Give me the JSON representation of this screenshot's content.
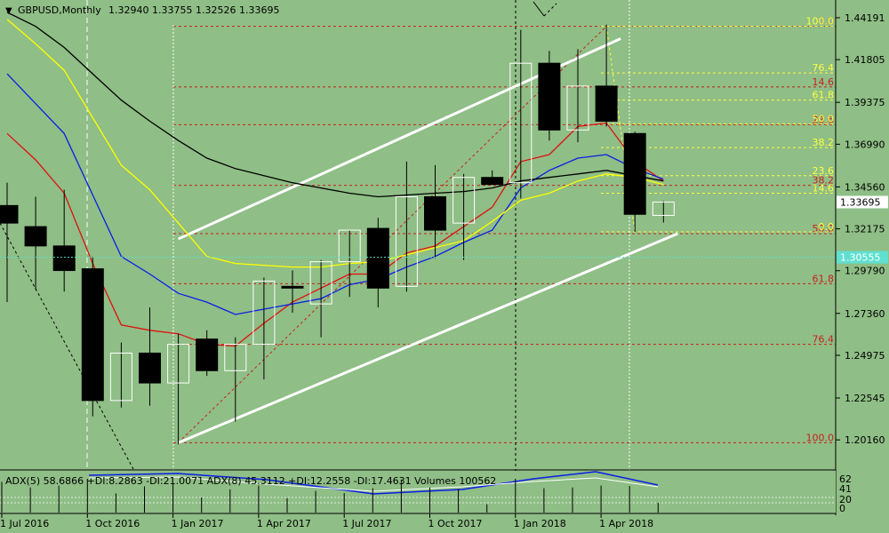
{
  "header": {
    "symbol_tf": "GBPUSD,Monthly",
    "ohlc": "1.32940 1.33755 1.32526 1.33695"
  },
  "indicator": {
    "label": "ADX(5) 58.6866 +DI:8.2863 -DI:21.0071  ADX(8) 45.3112 +DI:12.2558 -DI:17.4631  Volumes 100562",
    "levels": [
      "62",
      "41",
      "20",
      "0"
    ]
  },
  "colors": {
    "background": "#8fbe86",
    "grid_red": "#c8201e",
    "fib_yellow": "#ffff40",
    "bull": "#ffffff",
    "bear": "#000000",
    "channel": "#ffffff",
    "ma_red": "#e01010",
    "ma_blue": "#0a1ee6",
    "ma_yellow": "#ffff00",
    "ma_black": "#000000",
    "cyan_line": "#5fe0d0",
    "current_price_bg": "#ffffff"
  },
  "chart_data": {
    "type": "candlestick",
    "symbol": "GBPUSD",
    "timeframe": "Monthly",
    "ylim": [
      1.185,
      1.452
    ],
    "x_labels": [
      "1 Jul 2016",
      "1 Oct 2016",
      "1 Jan 2017",
      "1 Apr 2017",
      "1 Jul 2017",
      "1 Oct 2017",
      "1 Jan 2018",
      "1 Apr 2018"
    ],
    "x_label_index": [
      0,
      3,
      6,
      9,
      12,
      15,
      18,
      21
    ],
    "y_ticks": [
      "1.44191",
      "1.41805",
      "1.39375",
      "1.36990",
      "1.34560",
      "1.32175",
      "1.29790",
      "1.27360",
      "1.24975",
      "1.22545",
      "1.20160"
    ],
    "current_price": "1.33695",
    "cyan_price": "1.30555",
    "candles": [
      {
        "o": 1.335,
        "h": 1.348,
        "l": 1.28,
        "c": 1.325
      },
      {
        "o": 1.323,
        "h": 1.34,
        "l": 1.287,
        "c": 1.312
      },
      {
        "o": 1.312,
        "h": 1.344,
        "l": 1.286,
        "c": 1.298
      },
      {
        "o": 1.299,
        "h": 1.306,
        "l": 1.215,
        "c": 1.224
      },
      {
        "o": 1.224,
        "h": 1.257,
        "l": 1.22,
        "c": 1.251
      },
      {
        "o": 1.251,
        "h": 1.277,
        "l": 1.221,
        "c": 1.234
      },
      {
        "o": 1.234,
        "h": 1.262,
        "l": 1.199,
        "c": 1.256
      },
      {
        "o": 1.259,
        "h": 1.264,
        "l": 1.238,
        "c": 1.241
      },
      {
        "o": 1.241,
        "h": 1.26,
        "l": 1.212,
        "c": 1.256
      },
      {
        "o": 1.256,
        "h": 1.294,
        "l": 1.236,
        "c": 1.292
      },
      {
        "o": 1.289,
        "h": 1.298,
        "l": 1.274,
        "c": 1.288
      },
      {
        "o": 1.279,
        "h": 1.304,
        "l": 1.26,
        "c": 1.303
      },
      {
        "o": 1.303,
        "h": 1.321,
        "l": 1.283,
        "c": 1.321
      },
      {
        "o": 1.322,
        "h": 1.328,
        "l": 1.277,
        "c": 1.288
      },
      {
        "o": 1.289,
        "h": 1.36,
        "l": 1.286,
        "c": 1.34
      },
      {
        "o": 1.34,
        "h": 1.358,
        "l": 1.305,
        "c": 1.321
      },
      {
        "o": 1.325,
        "h": 1.353,
        "l": 1.304,
        "c": 1.351
      },
      {
        "o": 1.351,
        "h": 1.355,
        "l": 1.347,
        "c": 1.347
      },
      {
        "o": 1.348,
        "h": 1.435,
        "l": 1.339,
        "c": 1.416
      },
      {
        "o": 1.416,
        "h": 1.423,
        "l": 1.372,
        "c": 1.378
      },
      {
        "o": 1.378,
        "h": 1.424,
        "l": 1.371,
        "c": 1.403
      },
      {
        "o": 1.403,
        "h": 1.438,
        "l": 1.38,
        "c": 1.383
      },
      {
        "o": 1.376,
        "h": 1.377,
        "l": 1.32,
        "c": 1.33
      },
      {
        "o": 1.3294,
        "h": 1.3376,
        "l": 1.3253,
        "c": 1.337
      }
    ],
    "fib_red": {
      "levels": [
        {
          "label": "100.0",
          "price": 1.2
        },
        {
          "label": "76.4",
          "price": 1.256
        },
        {
          "label": "61.8",
          "price": 1.2905
        },
        {
          "label": "50.0",
          "price": 1.319
        },
        {
          "label": "38.2",
          "price": 1.3465
        },
        {
          "label": "23.6",
          "price": 1.381
        },
        {
          "label": "14.6",
          "price": 1.4025
        },
        {
          "label": "0.0",
          "price": 1.437
        }
      ]
    },
    "fib_yellow": {
      "levels": [
        {
          "label": "100.0",
          "price": 1.437
        },
        {
          "label": "76.4",
          "price": 1.4105
        },
        {
          "label": "61.8",
          "price": 1.395
        },
        {
          "label": "50.0",
          "price": 1.3815
        },
        {
          "label": "38.2",
          "price": 1.368
        },
        {
          "label": "23.6",
          "price": 1.352
        },
        {
          "label": "14.6",
          "price": 1.342
        },
        {
          "label": "0.0",
          "price": 1.32
        }
      ]
    },
    "moving_averages": [
      {
        "color": "#e01010",
        "points": [
          [
            0,
            1.376
          ],
          [
            1,
            1.361
          ],
          [
            2,
            1.342
          ],
          [
            3,
            1.302
          ],
          [
            4,
            1.267
          ],
          [
            5,
            1.264
          ],
          [
            6,
            1.262
          ],
          [
            7,
            1.256
          ],
          [
            8,
            1.255
          ],
          [
            9,
            1.268
          ],
          [
            10,
            1.28
          ],
          [
            11,
            1.288
          ],
          [
            12,
            1.296
          ],
          [
            13,
            1.296
          ],
          [
            14,
            1.308
          ],
          [
            15,
            1.312
          ],
          [
            16,
            1.323
          ],
          [
            17,
            1.334
          ],
          [
            18,
            1.36
          ],
          [
            19,
            1.364
          ],
          [
            20,
            1.38
          ],
          [
            21,
            1.382
          ],
          [
            22,
            1.36
          ],
          [
            23,
            1.349
          ]
        ]
      },
      {
        "color": "#0a1ee6",
        "points": [
          [
            0,
            1.41
          ],
          [
            1,
            1.393
          ],
          [
            2,
            1.376
          ],
          [
            3,
            1.341
          ],
          [
            4,
            1.306
          ],
          [
            5,
            1.296
          ],
          [
            6,
            1.285
          ],
          [
            7,
            1.28
          ],
          [
            8,
            1.273
          ],
          [
            9,
            1.276
          ],
          [
            10,
            1.279
          ],
          [
            11,
            1.282
          ],
          [
            12,
            1.29
          ],
          [
            13,
            1.293
          ],
          [
            14,
            1.3
          ],
          [
            15,
            1.306
          ],
          [
            16,
            1.314
          ],
          [
            17,
            1.321
          ],
          [
            18,
            1.345
          ],
          [
            19,
            1.355
          ],
          [
            20,
            1.362
          ],
          [
            21,
            1.364
          ],
          [
            22,
            1.356
          ],
          [
            23,
            1.35
          ]
        ]
      },
      {
        "color": "#ffff00",
        "points": [
          [
            0,
            1.441
          ],
          [
            1,
            1.427
          ],
          [
            2,
            1.412
          ],
          [
            3,
            1.385
          ],
          [
            4,
            1.358
          ],
          [
            5,
            1.344
          ],
          [
            6,
            1.325
          ],
          [
            7,
            1.306
          ],
          [
            8,
            1.302
          ],
          [
            9,
            1.301
          ],
          [
            10,
            1.3
          ],
          [
            11,
            1.3
          ],
          [
            12,
            1.302
          ],
          [
            13,
            1.303
          ],
          [
            14,
            1.307
          ],
          [
            15,
            1.311
          ],
          [
            16,
            1.315
          ],
          [
            17,
            1.326
          ],
          [
            18,
            1.338
          ],
          [
            19,
            1.342
          ],
          [
            20,
            1.349
          ],
          [
            21,
            1.353
          ],
          [
            22,
            1.351
          ],
          [
            23,
            1.347
          ]
        ]
      },
      {
        "color": "#000000",
        "points": [
          [
            0,
            1.445
          ],
          [
            1,
            1.437
          ],
          [
            2,
            1.425
          ],
          [
            3,
            1.41
          ],
          [
            4,
            1.395
          ],
          [
            5,
            1.383
          ],
          [
            6,
            1.372
          ],
          [
            7,
            1.362
          ],
          [
            8,
            1.356
          ],
          [
            9,
            1.352
          ],
          [
            10,
            1.348
          ],
          [
            11,
            1.345
          ],
          [
            12,
            1.342
          ],
          [
            13,
            1.34
          ],
          [
            14,
            1.341
          ],
          [
            15,
            1.342
          ],
          [
            16,
            1.343
          ],
          [
            17,
            1.345
          ],
          [
            18,
            1.349
          ],
          [
            19,
            1.351
          ],
          [
            20,
            1.353
          ],
          [
            21,
            1.355
          ],
          [
            22,
            1.352
          ],
          [
            23,
            1.349
          ]
        ]
      }
    ],
    "channel_lines": [
      {
        "from": [
          6,
          1.316
        ],
        "to": [
          21.5,
          1.43
        ]
      },
      {
        "from": [
          6,
          1.2
        ],
        "to": [
          23.5,
          1.319
        ]
      }
    ]
  }
}
